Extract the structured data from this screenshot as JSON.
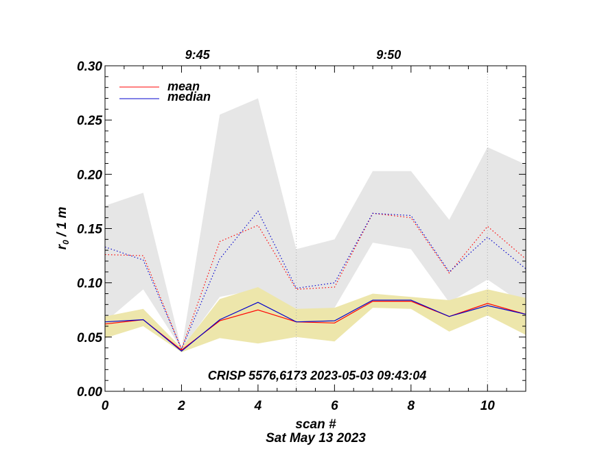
{
  "chart_data": {
    "type": "line",
    "title": "",
    "xlabel": "scan #",
    "ylabel_main": "r",
    "ylabel_sub": "0",
    "ylabel_rest": " / 1 m",
    "date_label": "Sat May 13 2023",
    "annotation": "CRISP 5576,6173 2023-05-03 09:43:04",
    "xlim": [
      0,
      11
    ],
    "ylim": [
      0,
      0.3
    ],
    "x_ticks": [
      0,
      2,
      4,
      6,
      8,
      10
    ],
    "x_tick_labels": [
      "0",
      "2",
      "4",
      "6",
      "8",
      "10"
    ],
    "y_ticks": [
      0,
      0.05,
      0.1,
      0.15,
      0.2,
      0.25,
      0.3
    ],
    "y_tick_labels": [
      "0.00",
      "0.05",
      "0.10",
      "0.15",
      "0.20",
      "0.25",
      "0.30"
    ],
    "top_axis": [
      {
        "x": 5,
        "label": "9:45"
      },
      {
        "x": 10,
        "label": "9:50"
      }
    ],
    "x": [
      0,
      1,
      2,
      3,
      4,
      5,
      6,
      7,
      8,
      9,
      10,
      11
    ],
    "series": [
      {
        "name": "mean",
        "values": [
          0.062,
          0.066,
          0.038,
          0.065,
          0.075,
          0.064,
          0.063,
          0.083,
          0.083,
          0.069,
          0.081,
          0.071
        ]
      },
      {
        "name": "median",
        "values": [
          0.064,
          0.066,
          0.037,
          0.066,
          0.082,
          0.064,
          0.065,
          0.084,
          0.084,
          0.069,
          0.079,
          0.071
        ]
      }
    ],
    "upper_mean": [
      0.126,
      0.125,
      0.039,
      0.138,
      0.153,
      0.094,
      0.096,
      0.164,
      0.16,
      0.109,
      0.152,
      0.122
    ],
    "upper_median": [
      0.133,
      0.121,
      0.039,
      0.122,
      0.166,
      0.095,
      0.1,
      0.164,
      0.162,
      0.11,
      0.142,
      0.113
    ],
    "gray_band": {
      "upper": [
        0.171,
        0.183,
        0.039,
        0.255,
        0.27,
        0.131,
        0.14,
        0.203,
        0.203,
        0.158,
        0.225,
        0.209
      ],
      "lower": [
        0.064,
        0.094,
        0.039,
        0.087,
        0.094,
        0.072,
        0.077,
        0.137,
        0.131,
        0.082,
        0.103,
        0.079
      ]
    },
    "yellow_band": {
      "upper": [
        0.069,
        0.076,
        0.04,
        0.085,
        0.096,
        0.076,
        0.077,
        0.09,
        0.087,
        0.084,
        0.094,
        0.086
      ],
      "lower": [
        0.049,
        0.06,
        0.036,
        0.049,
        0.044,
        0.05,
        0.046,
        0.077,
        0.076,
        0.055,
        0.07,
        0.052
      ]
    },
    "vlines": [
      5,
      10
    ],
    "colors": {
      "mean": "#ff0000",
      "median": "#0000cc",
      "gray_band": "#e6e6e6",
      "yellow_band": "#ede6ab",
      "vline": "#aaaaaa"
    },
    "legend": {
      "placement": "top-left",
      "entries": [
        "mean",
        "median"
      ]
    },
    "grid": false
  }
}
